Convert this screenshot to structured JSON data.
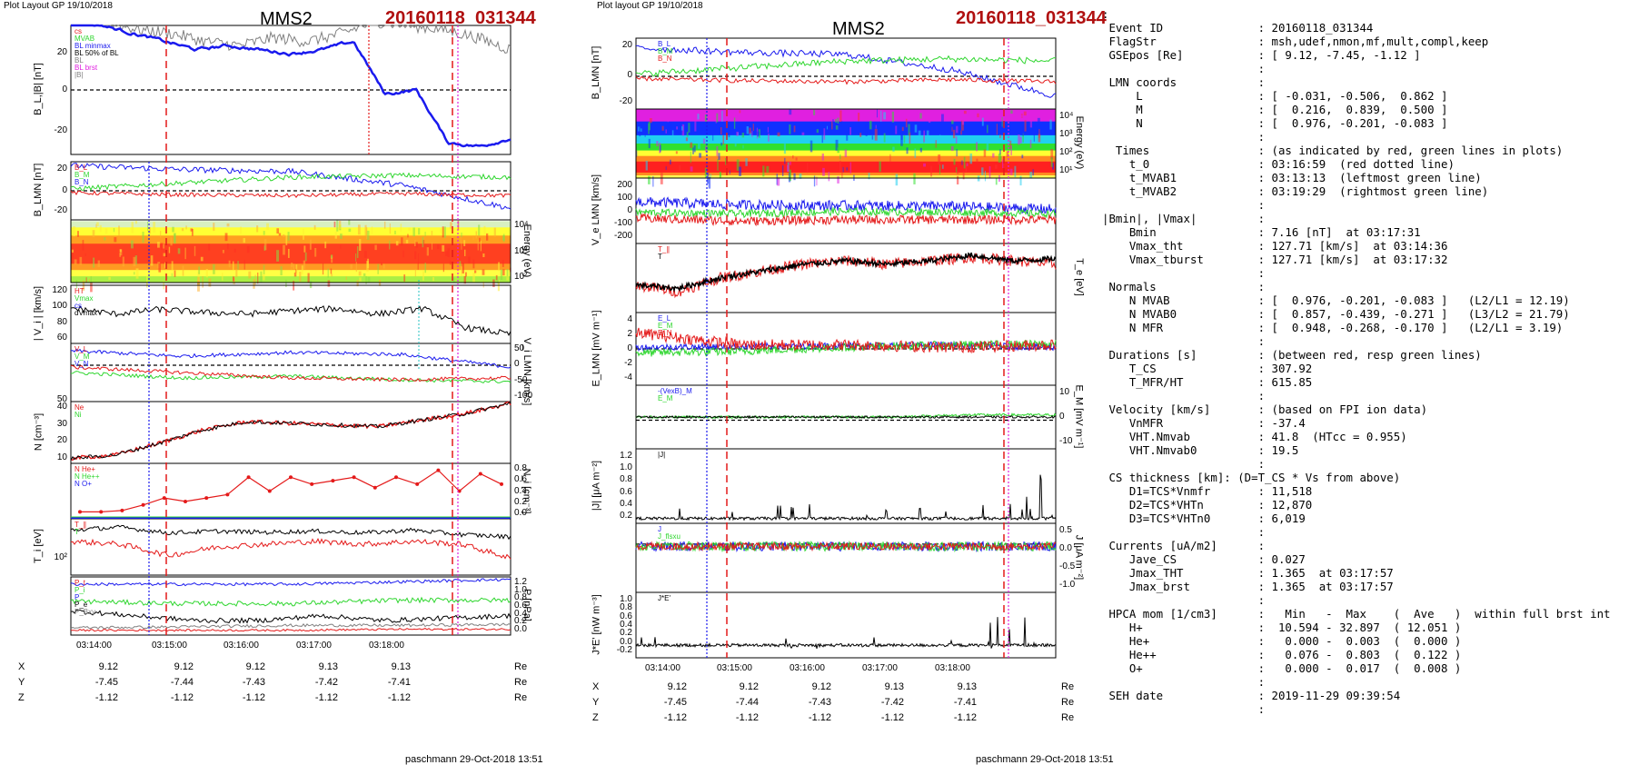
{
  "left_plot": {
    "layout_label": "Plot Layout GP 19/10/2018",
    "spacecraft": "MMS2",
    "event": "20160118_031344",
    "footer": "paschmann 29-Oct-2018 13:51",
    "x_ticks": [
      "03:14:00",
      "03:15:00",
      "03:16:00",
      "03:17:00",
      "03:18:00"
    ],
    "coords": [
      {
        "name": "X",
        "values": [
          "9.12",
          "9.12",
          "9.12",
          "9.13",
          "9.13"
        ],
        "unit": "Re"
      },
      {
        "name": "Y",
        "values": [
          "-7.45",
          "-7.44",
          "-7.43",
          "-7.42",
          "-7.41"
        ],
        "unit": "Re"
      },
      {
        "name": "Z",
        "values": [
          "-1.12",
          "-1.12",
          "-1.12",
          "-1.12",
          "-1.12"
        ],
        "unit": "Re"
      }
    ],
    "panels": [
      {
        "ylabel": "B_L,|B| [nT]",
        "ylabel_side": "left",
        "ticks": [
          "20",
          "0",
          "-20"
        ],
        "legend": [
          "cs",
          "MVAB",
          "BL minmax",
          "BL 50% of BL",
          "BL",
          "BL brst",
          "|B|"
        ]
      },
      {
        "ylabel": "B_LMN [nT]",
        "ylabel_side": "left",
        "ticks": [
          "20",
          "0",
          "-20"
        ],
        "legend": [
          "B_L",
          "B_M",
          "B_N"
        ]
      },
      {
        "ylabel": "Energy (eV)",
        "ylabel_side": "right",
        "ticks": [
          "10⁴",
          "10³",
          "10²"
        ],
        "legend": []
      },
      {
        "ylabel": "| V_i | [km/s]",
        "ylabel_side": "left",
        "ticks": [
          "120",
          "100",
          "80",
          "60"
        ],
        "legend": [
          "HT",
          "Vmax",
          "cs",
          "dVmax"
        ]
      },
      {
        "ylabel": "V_i LMN [km/s]",
        "ylabel_side": "right",
        "ticks": [
          "50",
          "0",
          "-50",
          "-100"
        ],
        "ticks_left": [
          "50"
        ],
        "legend": [
          "V_L",
          "V_M",
          "V_N"
        ]
      },
      {
        "ylabel": "N [cm⁻³]",
        "ylabel_side": "left",
        "ticks": [
          "40",
          "30",
          "20",
          "10"
        ],
        "legend": [
          "Ne",
          "Ni"
        ]
      },
      {
        "ylabel": "N_i [cm⁻³]",
        "ylabel_side": "right",
        "ticks": [
          "0.8",
          "0.6",
          "0.4",
          "0.2",
          "0.0"
        ],
        "legend": [
          "N He+",
          "N He++",
          "N O+"
        ]
      },
      {
        "ylabel": "T_i [eV]",
        "ylabel_side": "left",
        "ticks": [
          "10²"
        ],
        "legend": [
          "T_∥",
          "T"
        ]
      },
      {
        "ylabel": "P [nPa]",
        "ylabel_side": "right",
        "ticks": [
          "1.2",
          "1.0",
          "0.8",
          "0.6",
          "0.4",
          "0.2",
          "0.0"
        ],
        "legend": [
          "P_t",
          "P_i",
          "P",
          "P_e",
          "P_Bxy"
        ]
      }
    ]
  },
  "mid_plot": {
    "layout_label": "Plot layout GP 19/10/2018",
    "spacecraft": "MMS2",
    "event": "20160118_031344",
    "footer": "paschmann 29-Oct-2018 13:51",
    "x_ticks": [
      "03:14:00",
      "03:15:00",
      "03:16:00",
      "03:17:00",
      "03:18:00"
    ],
    "coords": [
      {
        "name": "X",
        "values": [
          "9.12",
          "9.12",
          "9.12",
          "9.13",
          "9.13"
        ],
        "unit": "Re"
      },
      {
        "name": "Y",
        "values": [
          "-7.45",
          "-7.44",
          "-7.43",
          "-7.42",
          "-7.41"
        ],
        "unit": "Re"
      },
      {
        "name": "Z",
        "values": [
          "-1.12",
          "-1.12",
          "-1.12",
          "-1.12",
          "-1.12"
        ],
        "unit": "Re"
      }
    ],
    "panels": [
      {
        "ylabel": "B_LMN [nT]",
        "ylabel_side": "left",
        "ticks": [
          "20",
          "0",
          "-20"
        ],
        "legend": [
          "B_L",
          "B_M",
          "B_N"
        ]
      },
      {
        "ylabel": "Energy (eV)",
        "ylabel_side": "right",
        "ticks": [
          "10⁴",
          "10³",
          "10²",
          "10¹"
        ],
        "legend": []
      },
      {
        "ylabel": "V_e LMN [km/s]",
        "ylabel_side": "left",
        "ticks": [
          "200",
          "100",
          "0",
          "-100",
          "-200"
        ],
        "legend": []
      },
      {
        "ylabel": "T_e [eV]",
        "ylabel_side": "right",
        "ticks": [],
        "legend": [
          "T_∥",
          "T"
        ]
      },
      {
        "ylabel": "E_LMN [mV m⁻¹]",
        "ylabel_side": "left",
        "ticks": [
          "4",
          "2",
          "0",
          "-2",
          "-4"
        ],
        "legend": [
          "E_L",
          "E_M",
          "E_N"
        ]
      },
      {
        "ylabel": "E_M [mV m⁻¹]",
        "ylabel_side": "right",
        "ticks": [
          "10",
          "0",
          "-10"
        ],
        "legend": [
          "-(VexB)_M",
          "E_M"
        ]
      },
      {
        "ylabel": "|J| [μA m⁻²]",
        "ylabel_side": "left",
        "ticks": [
          "1.2",
          "1.0",
          "0.8",
          "0.6",
          "0.4",
          "0.2"
        ],
        "legend": [
          "|J|"
        ]
      },
      {
        "ylabel": "J [μA m⁻²]",
        "ylabel_side": "right",
        "ticks": [
          "0.5",
          "0.0",
          "-0.5",
          "-1.0"
        ],
        "legend": [
          "J",
          "J_flsxu"
        ]
      },
      {
        "ylabel": "J*E' [nW m⁻³]",
        "ylabel_side": "left",
        "ticks": [
          "1.0",
          "0.8",
          "0.6",
          "0.4",
          "0.2",
          "0.0",
          "-0.2"
        ],
        "legend": [
          "J*E'"
        ]
      }
    ]
  },
  "info_lines": [
    ":",
    " Event ID              : 20160118_031344",
    " FlagStr               : msh,udef,nmon,mf,mult,compl,keep",
    " GSEpos [Re]           : [ 9.12, -7.45, -1.12 ]",
    "                       :",
    " LMN coords            :",
    "     L                 : [ -0.031, -0.506,  0.862 ]",
    "     M                 : [  0.216,  0.839,  0.500 ]",
    "     N                 : [  0.976, -0.201, -0.083 ]",
    "                       :",
    "  Times                : (as indicated by red, green lines in plots)",
    "    t_0                : 03:16:59  (red dotted line)",
    "    t_MVAB1            : 03:13:13  (leftmost green line)",
    "    t_MVAB2            : 03:19:29  (rightmost green line)",
    "                       :",
    "|Bmin|, |Vmax|         :",
    "    Bmin               : 7.16 [nT]  at 03:17:31",
    "    Vmax_tht           : 127.71 [km/s]  at 03:14:36",
    "    Vmax_tburst        : 127.71 [km/s]  at 03:17:32",
    "                       :",
    " Normals               :",
    "    N MVAB             : [  0.976, -0.201, -0.083 ]   (L2/L1 = 12.19)",
    "    N MVAB0            : [  0.857, -0.439, -0.271 ]   (L3/L2 = 21.79)",
    "    N MFR              : [  0.948, -0.268, -0.170 ]   (L2/L1 = 3.19)",
    "                       :",
    " Durations [s]         : (between red, resp green lines)",
    "    T_CS               : 307.92",
    "    T_MFR/HT           : 615.85",
    "                       :",
    " Velocity [km/s]       : (based on FPI ion data)",
    "    VnMFR              : -37.4",
    "    VHT.Nmvab          : 41.8  (HTcc = 0.955)",
    "    VHT.Nmvab0         : 19.5",
    "                       :",
    " CS thickness [km]: (D=T_CS * Vs from above)",
    "    D1=TCS*Vnmfr       : 11,518",
    "    D2=TCS*VHTn        : 12,870",
    "    D3=TCS*VHTn0       : 6,019",
    "                       :",
    " Currents [uA/m2]      :",
    "    Jave_CS            : 0.027",
    "    Jmax_THT           : 1.365  at 03:17:57",
    "    Jmax_brst          : 1.365  at 03:17:57",
    "                       :",
    " HPCA mom [1/cm3]      :   Min   -  Max    (  Ave   )  within full brst int",
    "    H+                 :  10.594 - 32.897  ( 12.051 )",
    "    He+                :   0.000 -  0.003  (  0.000 )",
    "    He++               :   0.076 -  0.803  (  0.122 )",
    "    O+                 :   0.000 -  0.017  (  0.008 )",
    "                       :",
    " SEH date              : 2019-11-29 09:39:54",
    "                       :"
  ],
  "colors": {
    "red": "#e41a1a",
    "green": "#2fd62f",
    "blue": "#1a1aee",
    "black": "#000000",
    "gray": "#808080",
    "magenta": "#e020e0",
    "title_red": "#b01010"
  },
  "chart_data": [
    {
      "type": "line",
      "title": "MMS2 20160118_031344",
      "x": [
        "03:14:00",
        "03:15:00",
        "03:16:00",
        "03:17:00",
        "03:18:00"
      ],
      "panels": [
        {
          "ylabel": "B_L,|B| [nT]",
          "ylim": [
            -32,
            32
          ],
          "series": [
            {
              "name": "B_L",
              "values": [
                34,
                28,
                22,
                -2,
                -26
              ]
            },
            {
              "name": "|B|",
              "values": [
                34,
                30,
                26,
                28,
                26
              ]
            }
          ]
        },
        {
          "ylabel": "B_LMN [nT]",
          "ylim": [
            -30,
            30
          ],
          "series": [
            {
              "name": "B_L",
              "values": [
                26,
                22,
                20,
                6,
                -18
              ]
            },
            {
              "name": "B_M",
              "values": [
                2,
                8,
                14,
                16,
                14
              ]
            },
            {
              "name": "B_N",
              "values": [
                -2,
                -4,
                -5,
                -3,
                -5
              ]
            }
          ]
        },
        {
          "ylabel": "| V_i | [km/s]",
          "ylim": [
            50,
            125
          ],
          "series": [
            {
              "name": "|V_i|",
              "values": [
                95,
                90,
                90,
                95,
                65
              ]
            }
          ]
        },
        {
          "ylabel": "V_i LMN [km/s]",
          "ylim": [
            -100,
            60
          ],
          "series": [
            {
              "name": "V_L",
              "values": [
                40,
                25,
                35,
                30,
                -5
              ]
            },
            {
              "name": "V_M",
              "values": [
                -20,
                -35,
                -30,
                -40,
                -45
              ]
            },
            {
              "name": "V_N",
              "values": [
                -5,
                -20,
                -35,
                -40,
                -35
              ]
            }
          ]
        },
        {
          "ylabel": "N [cm⁻³]",
          "ylim": [
            8,
            45
          ],
          "series": [
            {
              "name": "Ne",
              "values": [
                12,
                20,
                33,
                31,
                38
              ]
            },
            {
              "name": "Ni",
              "values": [
                12,
                20,
                33,
                31,
                38
              ]
            }
          ]
        },
        {
          "ylabel": "N_i [cm⁻³]",
          "ylim": [
            0,
            0.8
          ],
          "series": [
            {
              "name": "N He++",
              "values": [
                0.1,
                0.25,
                0.55,
                0.5,
                0.7
              ]
            },
            {
              "name": "N He+",
              "values": [
                0,
                0,
                0,
                0,
                0
              ]
            },
            {
              "name": "N O+",
              "values": [
                0,
                0,
                0,
                0,
                0
              ]
            }
          ]
        },
        {
          "ylabel": "P [nPa]",
          "ylim": [
            0,
            1.2
          ],
          "series": [
            {
              "name": "P_t",
              "values": [
                1.05,
                1.05,
                1.05,
                1.1,
                1.15
              ]
            },
            {
              "name": "P_i",
              "values": [
                0.7,
                0.65,
                0.65,
                0.72,
                0.72
              ]
            },
            {
              "name": "P",
              "values": [
                0.45,
                0.4,
                0.38,
                0.4,
                0.4
              ]
            },
            {
              "name": "P_e",
              "values": [
                0.15,
                0.17,
                0.2,
                0.2,
                0.22
              ]
            }
          ]
        }
      ]
    },
    {
      "type": "line",
      "title": "MMS2 20160118_031344",
      "x": [
        "03:14:00",
        "03:15:00",
        "03:16:00",
        "03:17:00",
        "03:18:00"
      ],
      "panels": [
        {
          "ylabel": "B_LMN [nT]",
          "ylim": [
            -30,
            35
          ],
          "series": [
            {
              "name": "B_L",
              "values": [
                26,
                22,
                20,
                6,
                -18
              ]
            },
            {
              "name": "B_M",
              "values": [
                2,
                8,
                14,
                16,
                14
              ]
            },
            {
              "name": "B_N",
              "values": [
                -2,
                -4,
                -5,
                -3,
                -5
              ]
            }
          ]
        },
        {
          "ylabel": "V_e LMN [km/s]",
          "ylim": [
            -220,
            220
          ],
          "series": [
            {
              "name": "V_L",
              "values": [
                60,
                40,
                35,
                30,
                10
              ]
            },
            {
              "name": "V_M",
              "values": [
                -10,
                -20,
                -5,
                -10,
                -20
              ]
            },
            {
              "name": "V_N",
              "values": [
                -50,
                -70,
                -60,
                -60,
                -60
              ]
            }
          ]
        },
        {
          "ylabel": "E_LMN [mV m⁻¹]",
          "ylim": [
            -4.5,
            4.5
          ],
          "series": [
            {
              "name": "E_L",
              "values": [
                2,
                0.5,
                0.5,
                0.2,
                0.5
              ]
            },
            {
              "name": "E_M",
              "values": [
                -0.5,
                -0.3,
                0.2,
                0.5,
                0.6
              ]
            },
            {
              "name": "E_N",
              "values": [
                0.2,
                0.3,
                0.4,
                0.5,
                0.2
              ]
            }
          ]
        },
        {
          "ylabel": "|J| [μA m⁻²]",
          "ylim": [
            0,
            1.3
          ],
          "series": [
            {
              "name": "|J|",
              "values": [
                0.1,
                0.1,
                0.08,
                0.12,
                0.3
              ]
            }
          ]
        },
        {
          "ylabel": "J*E' [nW m⁻³]",
          "ylim": [
            -0.25,
            1.05
          ],
          "series": [
            {
              "name": "J*E'",
              "values": [
                0,
                0.05,
                0,
                0.05,
                0.1
              ]
            }
          ]
        }
      ]
    }
  ]
}
